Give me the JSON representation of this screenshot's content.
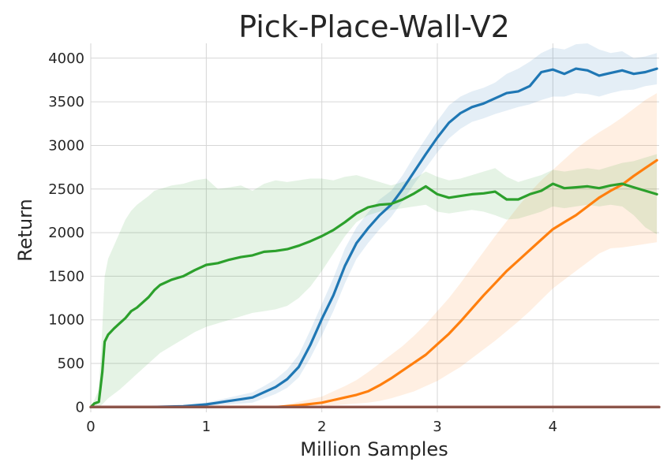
{
  "chart_data": {
    "type": "line",
    "title": "Pick-Place-Wall-V2",
    "xlabel": "Million Samples",
    "ylabel": "Return",
    "xlim": [
      0,
      4.92
    ],
    "ylim": [
      -60,
      4170
    ],
    "x_ticks": [
      0,
      1,
      2,
      3,
      4
    ],
    "y_ticks": [
      0,
      500,
      1000,
      1500,
      2000,
      2500,
      3000,
      3500,
      4000
    ],
    "grid": true,
    "legend": "none",
    "series": [
      {
        "color": "#8c564b",
        "x": [
          0,
          4.92
        ],
        "y": [
          0,
          0
        ],
        "band": [
          [
            0,
            0
          ],
          [
            0,
            0
          ]
        ]
      },
      {
        "color": "#d62728",
        "x": [
          0,
          4.92
        ],
        "y": [
          0,
          0
        ],
        "band": [
          [
            0,
            0
          ],
          [
            0,
            0
          ]
        ]
      },
      {
        "color": "#ff7f0e",
        "x": [
          0,
          1.6,
          1.8,
          2.0,
          2.1,
          2.2,
          2.3,
          2.4,
          2.5,
          2.6,
          2.7,
          2.8,
          2.9,
          3.0,
          3.1,
          3.2,
          3.3,
          3.4,
          3.5,
          3.6,
          3.7,
          3.8,
          3.9,
          4.0,
          4.1,
          4.2,
          4.3,
          4.4,
          4.5,
          4.6,
          4.7,
          4.8,
          4.9
        ],
        "y": [
          0,
          0,
          20,
          50,
          80,
          110,
          140,
          180,
          250,
          330,
          420,
          510,
          600,
          720,
          840,
          980,
          1130,
          1280,
          1420,
          1560,
          1680,
          1800,
          1920,
          2040,
          2120,
          2200,
          2300,
          2400,
          2480,
          2550,
          2650,
          2740,
          2830
        ],
        "band": [
          [
            0,
            0,
            0,
            10,
            20,
            30,
            40,
            50,
            70,
            100,
            140,
            180,
            240,
            300,
            380,
            460,
            560,
            660,
            760,
            870,
            980,
            1100,
            1230,
            1360,
            1460,
            1560,
            1660,
            1760,
            1820,
            1830,
            1850,
            1870,
            1890
          ],
          [
            0,
            0,
            60,
            120,
            180,
            240,
            310,
            400,
            500,
            600,
            700,
            820,
            950,
            1100,
            1250,
            1420,
            1600,
            1780,
            1960,
            2130,
            2300,
            2460,
            2600,
            2720,
            2840,
            2960,
            3060,
            3150,
            3230,
            3320,
            3420,
            3520,
            3600
          ]
        ]
      },
      {
        "color": "#1f77b4",
        "x": [
          0,
          0.5,
          0.8,
          1.0,
          1.1,
          1.2,
          1.3,
          1.4,
          1.5,
          1.6,
          1.7,
          1.8,
          1.9,
          2.0,
          2.1,
          2.2,
          2.3,
          2.4,
          2.5,
          2.6,
          2.7,
          2.8,
          2.9,
          3.0,
          3.1,
          3.2,
          3.3,
          3.4,
          3.5,
          3.6,
          3.7,
          3.8,
          3.9,
          4.0,
          4.1,
          4.2,
          4.3,
          4.4,
          4.5,
          4.6,
          4.7,
          4.8,
          4.9
        ],
        "y": [
          0,
          0,
          10,
          30,
          50,
          70,
          90,
          110,
          170,
          230,
          320,
          460,
          710,
          1010,
          1280,
          1620,
          1880,
          2050,
          2200,
          2320,
          2500,
          2700,
          2900,
          3090,
          3260,
          3370,
          3440,
          3480,
          3540,
          3600,
          3620,
          3680,
          3840,
          3870,
          3820,
          3880,
          3860,
          3800,
          3830,
          3860,
          3820,
          3840,
          3880
        ],
        "band": [
          [
            0,
            0,
            0,
            10,
            20,
            30,
            40,
            50,
            100,
            150,
            220,
            340,
            560,
            820,
            1100,
            1420,
            1700,
            1880,
            2040,
            2180,
            2360,
            2560,
            2740,
            2920,
            3080,
            3190,
            3270,
            3310,
            3360,
            3400,
            3440,
            3470,
            3520,
            3560,
            3560,
            3600,
            3590,
            3560,
            3600,
            3630,
            3640,
            3680,
            3700
          ],
          [
            0,
            0,
            20,
            50,
            80,
            110,
            140,
            170,
            240,
            320,
            430,
            600,
            880,
            1180,
            1480,
            1820,
            2060,
            2230,
            2380,
            2480,
            2660,
            2880,
            3080,
            3280,
            3460,
            3560,
            3620,
            3660,
            3720,
            3820,
            3880,
            3960,
            4060,
            4120,
            4100,
            4160,
            4170,
            4100,
            4060,
            4080,
            4000,
            4020,
            4060
          ]
        ]
      },
      {
        "color": "#2ca02c",
        "x": [
          0,
          0.03,
          0.07,
          0.1,
          0.12,
          0.15,
          0.2,
          0.25,
          0.3,
          0.35,
          0.4,
          0.5,
          0.55,
          0.6,
          0.7,
          0.8,
          0.9,
          1.0,
          1.1,
          1.2,
          1.3,
          1.4,
          1.5,
          1.6,
          1.7,
          1.8,
          1.9,
          2.0,
          2.1,
          2.2,
          2.3,
          2.4,
          2.5,
          2.6,
          2.7,
          2.8,
          2.9,
          3.0,
          3.1,
          3.2,
          3.3,
          3.4,
          3.5,
          3.6,
          3.7,
          3.8,
          3.9,
          4.0,
          4.1,
          4.2,
          4.3,
          4.4,
          4.5,
          4.6,
          4.7,
          4.8,
          4.9
        ],
        "y": [
          0,
          40,
          60,
          400,
          750,
          830,
          900,
          960,
          1020,
          1100,
          1140,
          1260,
          1340,
          1400,
          1460,
          1500,
          1570,
          1630,
          1650,
          1690,
          1720,
          1740,
          1780,
          1790,
          1810,
          1850,
          1900,
          1960,
          2030,
          2120,
          2220,
          2290,
          2320,
          2330,
          2380,
          2450,
          2530,
          2440,
          2400,
          2420,
          2440,
          2450,
          2470,
          2380,
          2380,
          2440,
          2480,
          2560,
          2510,
          2520,
          2530,
          2510,
          2540,
          2560,
          2520,
          2480,
          2440
        ],
        "band": [
          [
            0,
            0,
            0,
            30,
            60,
            100,
            150,
            200,
            260,
            320,
            380,
            500,
            560,
            620,
            700,
            780,
            860,
            920,
            960,
            1000,
            1040,
            1080,
            1100,
            1120,
            1160,
            1250,
            1380,
            1560,
            1760,
            1960,
            2120,
            2200,
            2240,
            2260,
            2280,
            2300,
            2320,
            2240,
            2220,
            2240,
            2260,
            2240,
            2200,
            2150,
            2160,
            2200,
            2240,
            2300,
            2280,
            2300,
            2320,
            2300,
            2320,
            2300,
            2200,
            2060,
            1980
          ],
          [
            0,
            80,
            200,
            900,
            1500,
            1700,
            1850,
            2000,
            2150,
            2250,
            2320,
            2420,
            2480,
            2500,
            2540,
            2560,
            2600,
            2620,
            2500,
            2520,
            2540,
            2480,
            2560,
            2600,
            2580,
            2600,
            2620,
            2620,
            2600,
            2640,
            2660,
            2620,
            2580,
            2540,
            2580,
            2620,
            2700,
            2640,
            2600,
            2620,
            2660,
            2700,
            2740,
            2640,
            2580,
            2620,
            2660,
            2720,
            2700,
            2720,
            2740,
            2720,
            2760,
            2800,
            2820,
            2860,
            2900
          ]
        ]
      }
    ]
  }
}
